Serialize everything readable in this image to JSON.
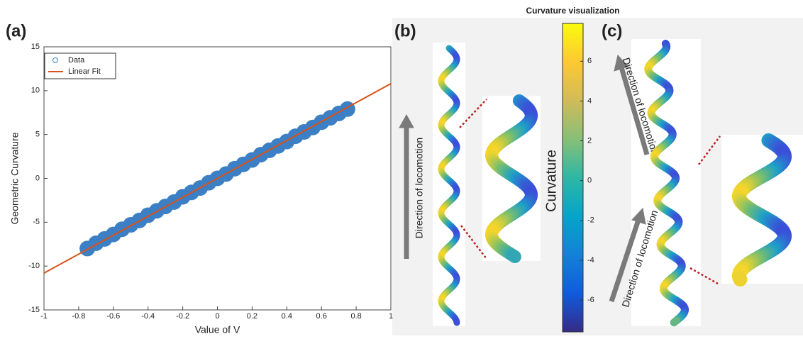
{
  "panel_labels": [
    "(a)",
    "(b)",
    "(c)"
  ],
  "annotations": [
    "Direction of locomotion",
    "Direction of locomotion",
    "Direction of locomotion"
  ],
  "chart_data": [
    {
      "type": "scatter",
      "xlabel": "Value of V",
      "ylabel": "Geometric Curvature",
      "xlim": [
        -1,
        1
      ],
      "ylim": [
        -15,
        15
      ],
      "xticks": [
        -1,
        -0.8,
        -0.6,
        -0.4,
        -0.2,
        0,
        0.2,
        0.4,
        0.6,
        0.8,
        1
      ],
      "yticks": [
        -15,
        -10,
        -5,
        0,
        5,
        10,
        15
      ],
      "legend": "upper left",
      "series": [
        {
          "name": "Data",
          "color": "#3d7fc4",
          "marker": "circle",
          "x": [
            -0.75,
            -0.7,
            -0.65,
            -0.6,
            -0.55,
            -0.5,
            -0.45,
            -0.4,
            -0.35,
            -0.3,
            -0.25,
            -0.2,
            -0.15,
            -0.1,
            -0.05,
            0,
            0.05,
            0.1,
            0.15,
            0.2,
            0.25,
            0.3,
            0.35,
            0.4,
            0.45,
            0.5,
            0.55,
            0.6,
            0.65,
            0.7,
            0.75
          ],
          "values": [
            -8.0,
            -7.4,
            -6.9,
            -6.4,
            -5.8,
            -5.3,
            -4.8,
            -4.2,
            -3.7,
            -3.2,
            -2.7,
            -2.1,
            -1.6,
            -1.1,
            -0.5,
            0,
            0.5,
            1.1,
            1.6,
            2.1,
            2.7,
            3.2,
            3.7,
            4.2,
            4.8,
            5.3,
            5.8,
            6.4,
            6.9,
            7.4,
            7.9
          ]
        },
        {
          "name": "Linear Fit",
          "color": "#d95319",
          "marker": "line",
          "x": [
            -1,
            1
          ],
          "values": [
            -10.8,
            10.8
          ]
        }
      ]
    },
    {
      "type": "colorbar",
      "title": "Curvature visualization",
      "ylabel": "Curvature",
      "ylim": [
        -7.6,
        7.9
      ],
      "yticks": [
        -6,
        -4,
        -2,
        0,
        2,
        4,
        6
      ],
      "colormap": [
        "#352a87",
        "#0f5cdd",
        "#1481d6",
        "#06a4ca",
        "#2eb7a4",
        "#87bf77",
        "#d1bb59",
        "#fec832",
        "#f9fb0e"
      ]
    }
  ]
}
